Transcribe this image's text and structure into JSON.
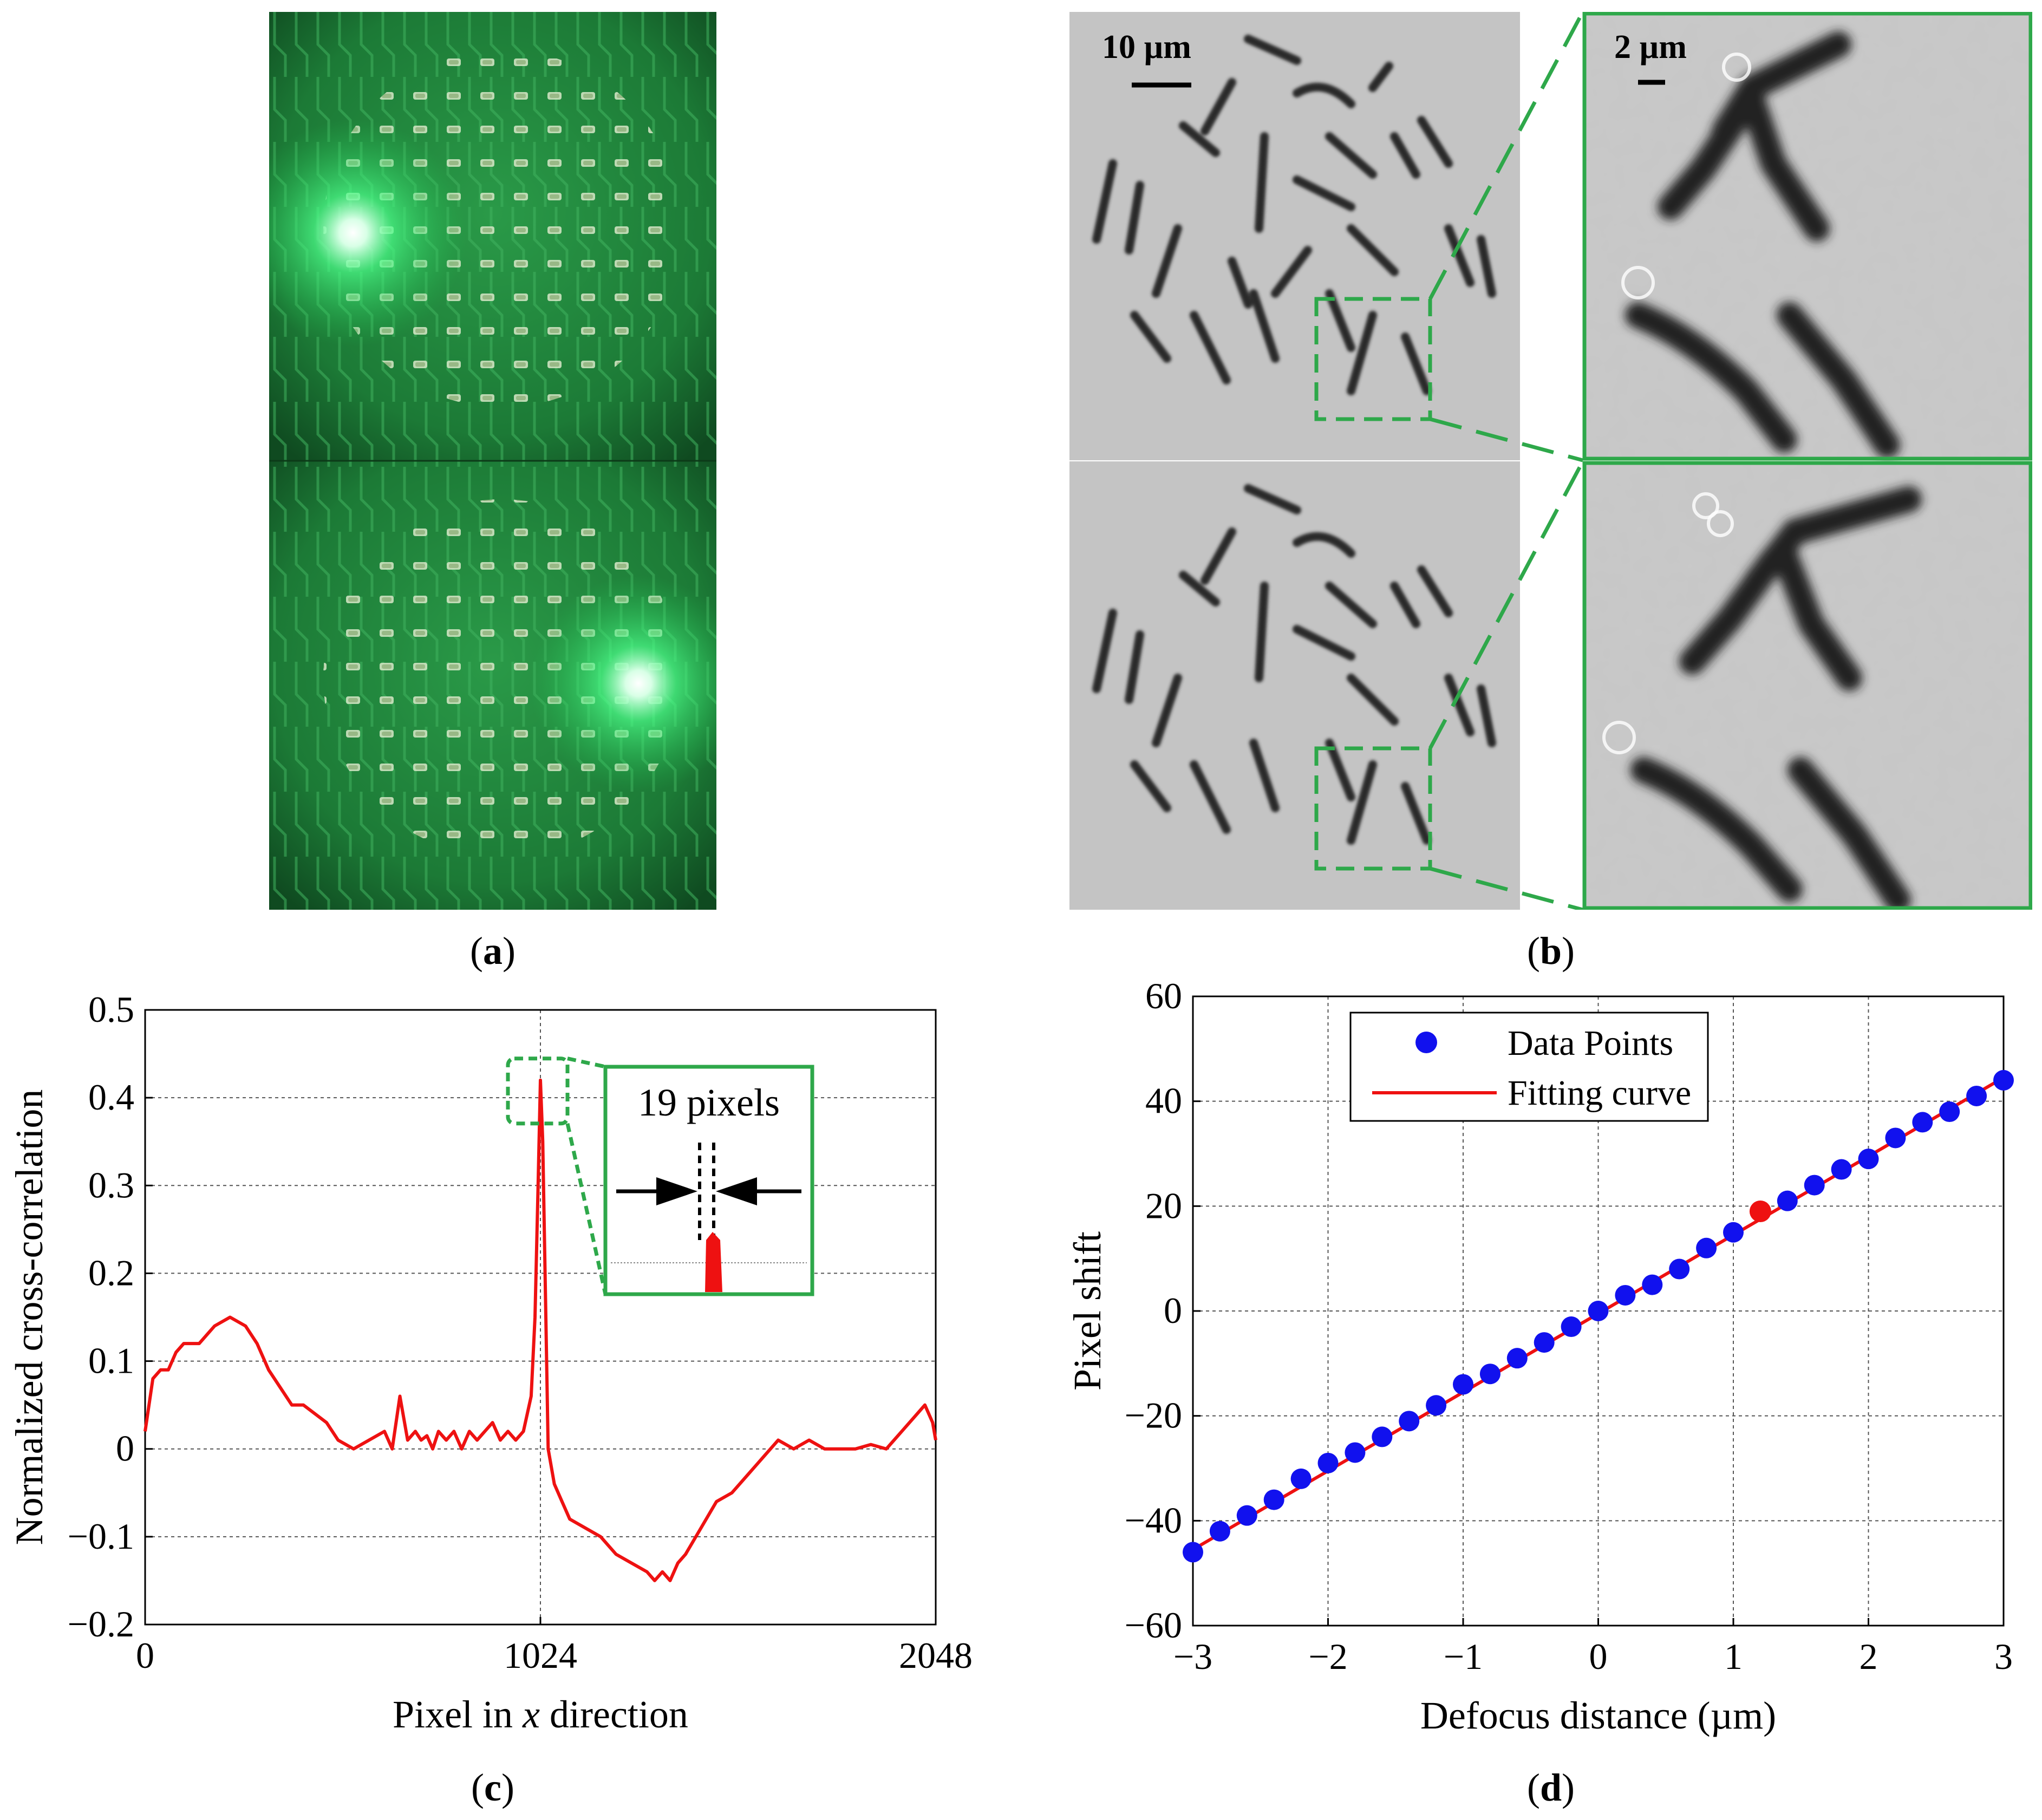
{
  "figure": {
    "panel_labels": {
      "a": "a",
      "b": "b",
      "c": "c",
      "d": "d"
    }
  },
  "panel_b": {
    "scale_bar_left": "10 µm",
    "scale_bar_right": "2 µm"
  },
  "panel_c": {
    "inset_label": "19 pixels"
  },
  "colors": {
    "pcb_green": "#1f7a3a",
    "led_glow": "#c8ffd8",
    "inset_green": "#2ea84a",
    "curve_red": "#ee1111",
    "point_blue": "#1111ee"
  },
  "chart_data": [
    {
      "type": "line",
      "panel": "c",
      "xlabel_prefix": "Pixel in ",
      "xlabel_var": "x",
      "xlabel_suffix": " direction",
      "ylabel": "Normalized cross-correlation",
      "xlim": [
        0,
        2048
      ],
      "ylim": [
        -0.2,
        0.5
      ],
      "xticks": [
        0,
        1024,
        2048
      ],
      "xtick_labels": [
        "0",
        "1024",
        "2048"
      ],
      "yticks": [
        -0.2,
        -0.1,
        0,
        0.1,
        0.2,
        0.3,
        0.4,
        0.5
      ],
      "ytick_labels": [
        "−0.2",
        "−0.1",
        "0",
        "0.1",
        "0.2",
        "0.3",
        "0.4",
        "0.5"
      ],
      "grid": true,
      "series": [
        {
          "name": "cross-correlation",
          "x": [
            0,
            20,
            40,
            60,
            80,
            100,
            140,
            180,
            220,
            260,
            290,
            320,
            350,
            380,
            410,
            440,
            470,
            500,
            540,
            580,
            620,
            640,
            660,
            680,
            700,
            715,
            730,
            745,
            760,
            780,
            800,
            820,
            840,
            860,
            880,
            900,
            920,
            940,
            960,
            980,
            1000,
            1010,
            1018,
            1024,
            1030,
            1036,
            1044,
            1060,
            1080,
            1100,
            1140,
            1180,
            1220,
            1260,
            1300,
            1320,
            1340,
            1360,
            1380,
            1400,
            1440,
            1480,
            1520,
            1560,
            1600,
            1640,
            1680,
            1720,
            1760,
            1800,
            1840,
            1880,
            1920,
            1960,
            2000,
            2020,
            2040,
            2048
          ],
          "y": [
            0.02,
            0.08,
            0.09,
            0.09,
            0.11,
            0.12,
            0.12,
            0.14,
            0.15,
            0.14,
            0.12,
            0.09,
            0.07,
            0.05,
            0.05,
            0.04,
            0.03,
            0.01,
            0.0,
            0.01,
            0.02,
            0.0,
            0.06,
            0.01,
            0.02,
            0.01,
            0.015,
            0.0,
            0.02,
            0.01,
            0.02,
            0.0,
            0.02,
            0.01,
            0.02,
            0.03,
            0.01,
            0.02,
            0.01,
            0.02,
            0.06,
            0.15,
            0.3,
            0.42,
            0.35,
            0.2,
            0.0,
            -0.04,
            -0.06,
            -0.08,
            -0.09,
            -0.1,
            -0.12,
            -0.13,
            -0.14,
            -0.15,
            -0.14,
            -0.15,
            -0.13,
            -0.12,
            -0.09,
            -0.06,
            -0.05,
            -0.03,
            -0.01,
            0.01,
            0.0,
            0.01,
            0.0,
            0.0,
            0.0,
            0.005,
            0.0,
            0.02,
            0.04,
            0.05,
            0.03,
            0.01
          ]
        }
      ]
    },
    {
      "type": "scatter",
      "panel": "d",
      "xlabel": "Defocus distance (µm)",
      "ylabel": "Pixel shift",
      "xlim": [
        -3,
        3
      ],
      "ylim": [
        -60,
        60
      ],
      "xticks": [
        -3,
        -2,
        -1,
        0,
        1,
        2,
        3
      ],
      "xtick_labels": [
        "−3",
        "−2",
        "−1",
        "0",
        "1",
        "2",
        "3"
      ],
      "yticks": [
        -60,
        -40,
        -20,
        0,
        20,
        40,
        60
      ],
      "ytick_labels": [
        "−60",
        "−40",
        "−20",
        "0",
        "20",
        "40",
        "60"
      ],
      "grid": true,
      "legend": {
        "position": "top-left",
        "entries": [
          "Data Points",
          "Fitting curve"
        ]
      },
      "series": [
        {
          "name": "Data Points",
          "x": [
            -3.0,
            -2.8,
            -2.6,
            -2.4,
            -2.2,
            -2.0,
            -1.8,
            -1.6,
            -1.4,
            -1.2,
            -1.0,
            -0.8,
            -0.6,
            -0.4,
            -0.2,
            0.0,
            0.2,
            0.4,
            0.6,
            0.8,
            1.0,
            1.2,
            1.4,
            1.6,
            1.8,
            2.0,
            2.2,
            2.4,
            2.6,
            2.8,
            3.0
          ],
          "y": [
            -46,
            -42,
            -39,
            -36,
            -32,
            -29,
            -27,
            -24,
            -21,
            -18,
            -14,
            -12,
            -9,
            -6,
            -3,
            0,
            3,
            5,
            8,
            12,
            15,
            19,
            21,
            24,
            27,
            29,
            33,
            36,
            38,
            41,
            44
          ]
        },
        {
          "name": "Fitting curve",
          "x": [
            -3,
            3
          ],
          "y": [
            -45.5,
            44.5
          ]
        },
        {
          "name": "highlight",
          "x": [
            1.2
          ],
          "y": [
            19
          ]
        }
      ]
    }
  ]
}
